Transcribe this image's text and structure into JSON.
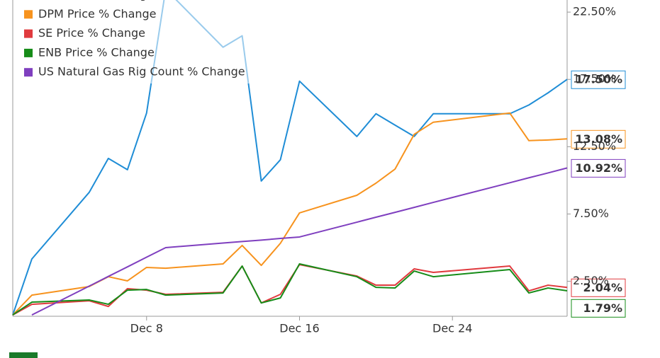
{
  "chart_data": {
    "type": "line",
    "x": [
      1,
      2,
      5,
      6,
      7,
      8,
      9,
      12,
      13,
      14,
      15,
      16,
      19,
      20,
      21,
      22,
      23,
      27,
      28,
      29,
      30
    ],
    "xlim": [
      1,
      30
    ],
    "xticks": [
      {
        "value": 8,
        "label": "Dec 8"
      },
      {
        "value": 16,
        "label": "Dec 16"
      },
      {
        "value": 24,
        "label": "Dec 24"
      }
    ],
    "ylim": [
      -0.1,
      23.4
    ],
    "yticks": [
      {
        "value": 2.5,
        "label": "2.50%"
      },
      {
        "value": 7.5,
        "label": "7.50%"
      },
      {
        "value": 12.5,
        "label": "12.50%"
      },
      {
        "value": 17.5,
        "label": "17.50%"
      },
      {
        "value": 22.5,
        "label": "22.50%"
      }
    ],
    "grid": false,
    "legend": "top-left",
    "series": [
      {
        "name": "NEE Price % Change",
        "color": "#1f8dd6",
        "values": [
          0,
          4.16,
          9.11,
          11.63,
          10.79,
          15.0,
          24.2,
          19.89,
          20.74,
          9.95,
          11.53,
          17.37,
          13.26,
          14.95,
          14.1,
          13.26,
          14.95,
          14.95,
          15.6,
          16.5,
          17.5
        ],
        "value_labels": [
          null,
          null,
          null,
          null,
          null,
          null,
          null,
          null,
          null,
          null,
          null,
          null,
          null,
          null,
          null,
          null,
          null,
          null,
          null,
          null,
          "17.50%"
        ]
      },
      {
        "name": "DPM Price % Change",
        "color": "#f7931e",
        "values": [
          0,
          1.47,
          2.11,
          2.84,
          2.53,
          3.53,
          3.47,
          3.79,
          5.16,
          3.68,
          5.32,
          7.58,
          8.89,
          9.79,
          10.84,
          13.42,
          14.32,
          15.0,
          12.95,
          13.0,
          13.08
        ],
        "value_labels": [
          null,
          null,
          null,
          null,
          null,
          null,
          null,
          null,
          null,
          null,
          null,
          null,
          null,
          null,
          null,
          null,
          null,
          null,
          null,
          null,
          "13.08%"
        ]
      },
      {
        "name": "SE Price % Change",
        "color": "#e03a3e",
        "values": [
          0,
          0.79,
          1.05,
          0.63,
          1.95,
          1.84,
          1.53,
          1.68,
          3.63,
          0.89,
          1.53,
          3.74,
          2.89,
          2.21,
          2.21,
          3.42,
          3.16,
          3.63,
          1.79,
          2.21,
          2.04
        ],
        "value_labels": [
          null,
          null,
          null,
          null,
          null,
          null,
          null,
          null,
          null,
          null,
          null,
          null,
          null,
          null,
          null,
          null,
          null,
          null,
          null,
          null,
          "2.04%"
        ]
      },
      {
        "name": "ENB Price % Change",
        "color": "#168c18",
        "values": [
          0,
          0.95,
          1.11,
          0.79,
          1.84,
          1.89,
          1.47,
          1.63,
          3.63,
          0.89,
          1.26,
          3.79,
          2.84,
          2.05,
          2.0,
          3.26,
          2.84,
          3.37,
          1.63,
          2.0,
          1.79
        ],
        "value_labels": [
          null,
          null,
          null,
          null,
          null,
          null,
          null,
          null,
          null,
          null,
          null,
          null,
          null,
          null,
          null,
          null,
          null,
          null,
          null,
          null,
          "1.79%"
        ]
      },
      {
        "name": "US Natural Gas Rig Count % Change",
        "color": "#7f3fbf",
        "values": [
          null,
          0,
          2.14,
          2.86,
          3.57,
          4.29,
          5.0,
          5.34,
          5.45,
          5.56,
          5.68,
          5.79,
          6.89,
          7.26,
          7.62,
          7.99,
          8.36,
          9.82,
          10.19,
          10.55,
          10.92
        ],
        "value_labels": [
          null,
          null,
          null,
          null,
          null,
          null,
          null,
          null,
          null,
          null,
          null,
          null,
          null,
          null,
          null,
          null,
          null,
          null,
          null,
          null,
          "10.92%"
        ]
      }
    ]
  }
}
